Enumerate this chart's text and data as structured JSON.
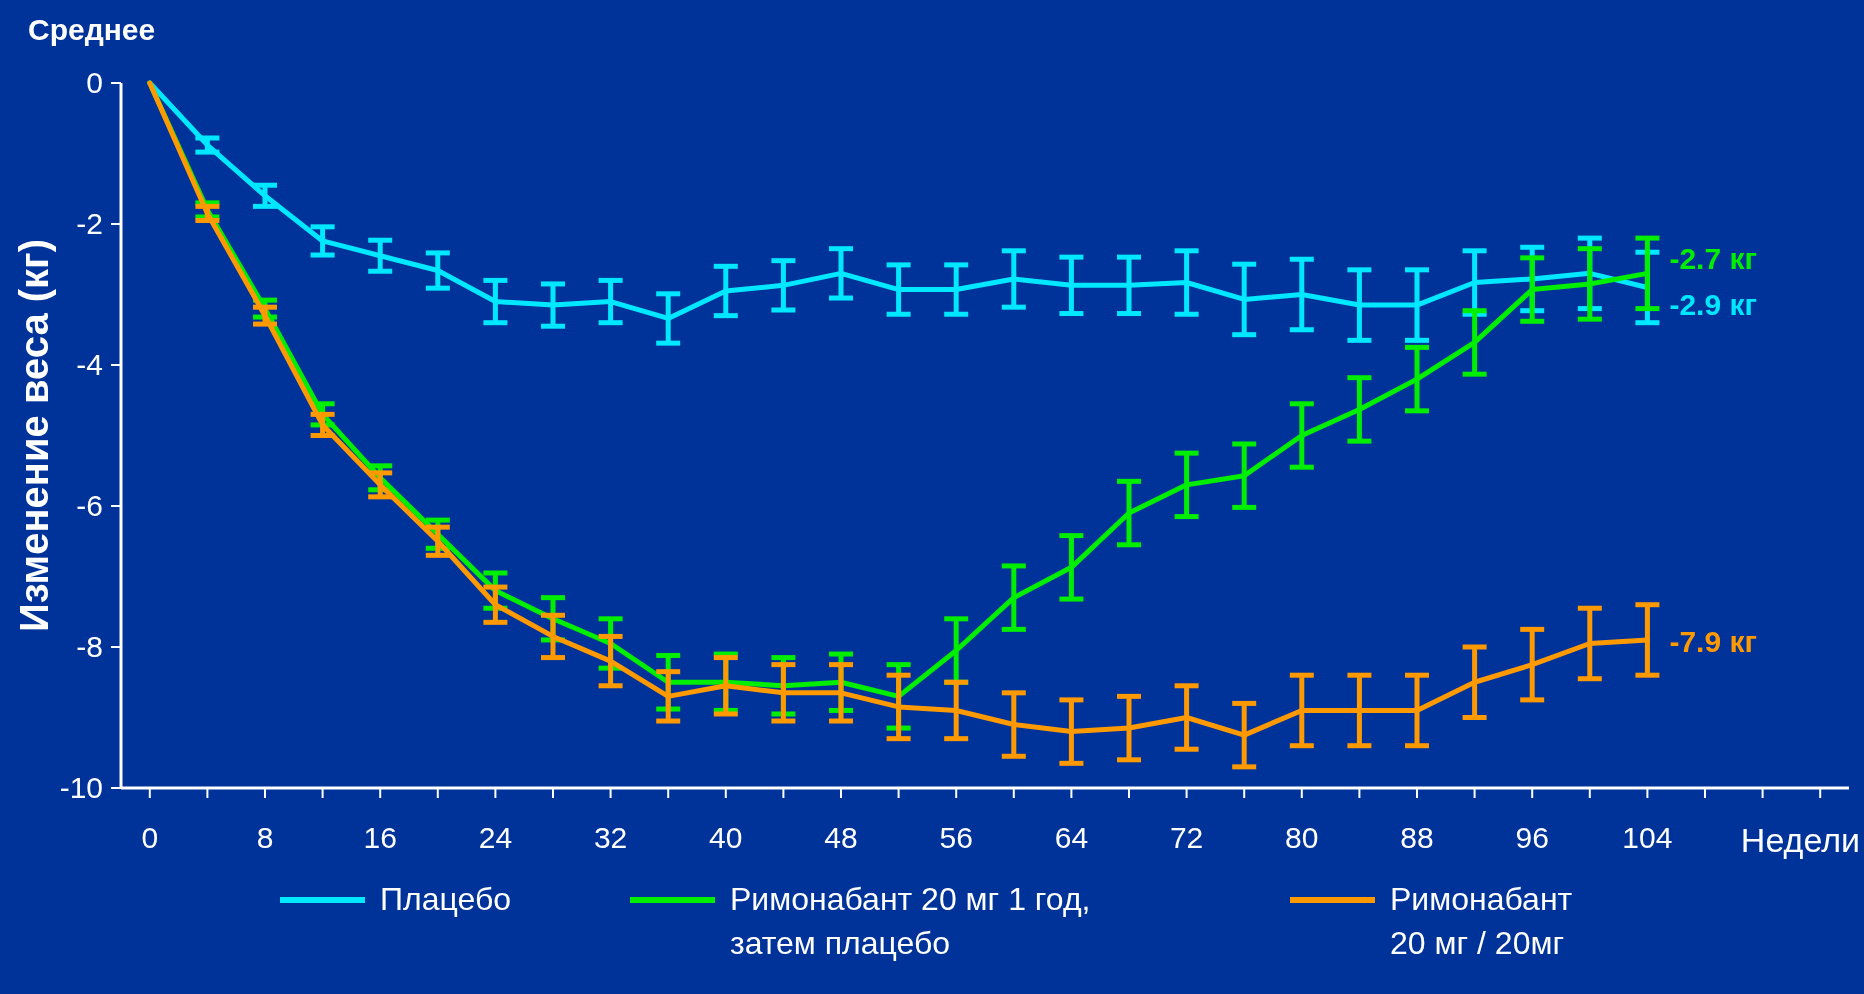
{
  "chart_data": {
    "type": "line",
    "xlabel": "Недели",
    "ylabel": "Изменение веса (кг)",
    "annotations": [
      "Среднее"
    ],
    "x": [
      0,
      4,
      8,
      12,
      16,
      20,
      24,
      28,
      32,
      36,
      40,
      44,
      48,
      52,
      56,
      60,
      64,
      68,
      72,
      76,
      80,
      84,
      88,
      92,
      96,
      100,
      104
    ],
    "xlim": [
      -2,
      118
    ],
    "xticks": [
      0,
      {
        "value": 4,
        "label": null
      },
      8,
      {
        "value": 12,
        "label": null
      },
      16,
      {
        "value": 20,
        "label": null
      },
      24,
      {
        "value": 28,
        "label": null
      },
      32,
      {
        "value": 36,
        "label": null
      },
      40,
      {
        "value": 44,
        "label": null
      },
      48,
      {
        "value": 52,
        "label": null
      },
      56,
      {
        "value": 60,
        "label": null
      },
      64,
      {
        "value": 68,
        "label": null
      },
      72,
      {
        "value": 76,
        "label": null
      },
      80,
      {
        "value": 84,
        "label": null
      },
      88,
      {
        "value": 92,
        "label": null
      },
      96,
      {
        "value": 100,
        "label": null
      },
      104,
      {
        "value": 108,
        "label": null
      },
      {
        "value": 112,
        "label": null
      },
      {
        "value": 116,
        "label": null
      }
    ],
    "ylim": [
      -10,
      0
    ],
    "yticks": [
      -10,
      -8,
      -6,
      -4,
      -2,
      0
    ],
    "grid": false,
    "legend": "bottom",
    "marker": "none",
    "line_style": "solid",
    "series": [
      {
        "name": "Плацебо",
        "color": "#00e8ff",
        "values": [
          0,
          -0.88,
          -1.6,
          -2.24,
          -2.45,
          -2.66,
          -3.1,
          -3.15,
          -3.1,
          -3.34,
          -2.95,
          -2.87,
          -2.7,
          -2.93,
          -2.93,
          -2.78,
          -2.87,
          -2.87,
          -2.83,
          -3.07,
          -3.0,
          -3.15,
          -3.15,
          -2.83,
          -2.78,
          -2.7,
          -2.9
        ],
        "errors": [
          null,
          0.1,
          0.15,
          0.2,
          0.22,
          0.25,
          0.3,
          0.3,
          0.3,
          0.35,
          0.35,
          0.35,
          0.35,
          0.35,
          0.35,
          0.4,
          0.4,
          0.4,
          0.45,
          0.5,
          0.5,
          0.5,
          0.5,
          0.45,
          0.45,
          0.5,
          0.5
        ],
        "value_labels": [
          null,
          null,
          null,
          null,
          null,
          null,
          null,
          null,
          null,
          null,
          null,
          null,
          null,
          null,
          null,
          null,
          null,
          null,
          null,
          null,
          null,
          null,
          null,
          null,
          null,
          null,
          "-2.9 кг"
        ]
      },
      {
        "name": "Римонабант 20 мг 1 год, затем плацебо",
        "color": "#00ee00",
        "values": [
          0,
          -1.8,
          -3.2,
          -4.7,
          -5.6,
          -6.4,
          -7.2,
          -7.6,
          -7.95,
          -8.5,
          -8.5,
          -8.55,
          -8.5,
          -8.7,
          -8.05,
          -7.3,
          -6.87,
          -6.1,
          -5.7,
          -5.57,
          -5.0,
          -4.63,
          -4.2,
          -3.68,
          -2.93,
          -2.85,
          -2.7
        ],
        "errors": [
          null,
          0.1,
          0.12,
          0.15,
          0.17,
          0.2,
          0.25,
          0.3,
          0.35,
          0.38,
          0.4,
          0.4,
          0.4,
          0.45,
          0.45,
          0.45,
          0.45,
          0.45,
          0.45,
          0.45,
          0.45,
          0.45,
          0.45,
          0.45,
          0.45,
          0.5,
          0.5
        ],
        "value_labels": [
          null,
          null,
          null,
          null,
          null,
          null,
          null,
          null,
          null,
          null,
          null,
          null,
          null,
          null,
          null,
          null,
          null,
          null,
          null,
          null,
          null,
          null,
          null,
          null,
          null,
          null,
          "-2.7 кг"
        ]
      },
      {
        "name": "Римонабант 20 мг / 20мг",
        "color": "#ff9900",
        "values": [
          0,
          -1.85,
          -3.3,
          -4.85,
          -5.7,
          -6.5,
          -7.4,
          -7.85,
          -8.2,
          -8.7,
          -8.55,
          -8.65,
          -8.65,
          -8.85,
          -8.9,
          -9.1,
          -9.2,
          -9.15,
          -9.0,
          -9.25,
          -8.9,
          -8.9,
          -8.9,
          -8.5,
          -8.25,
          -7.95,
          -7.9
        ],
        "errors": [
          null,
          0.1,
          0.12,
          0.15,
          0.17,
          0.2,
          0.25,
          0.3,
          0.35,
          0.35,
          0.4,
          0.4,
          0.4,
          0.45,
          0.4,
          0.45,
          0.45,
          0.45,
          0.45,
          0.45,
          0.5,
          0.5,
          0.5,
          0.5,
          0.5,
          0.5,
          0.5
        ],
        "value_labels": [
          null,
          null,
          null,
          null,
          null,
          null,
          null,
          null,
          null,
          null,
          null,
          null,
          null,
          null,
          null,
          null,
          null,
          null,
          null,
          null,
          null,
          null,
          null,
          null,
          null,
          null,
          "-7.9 кг"
        ]
      }
    ]
  }
}
